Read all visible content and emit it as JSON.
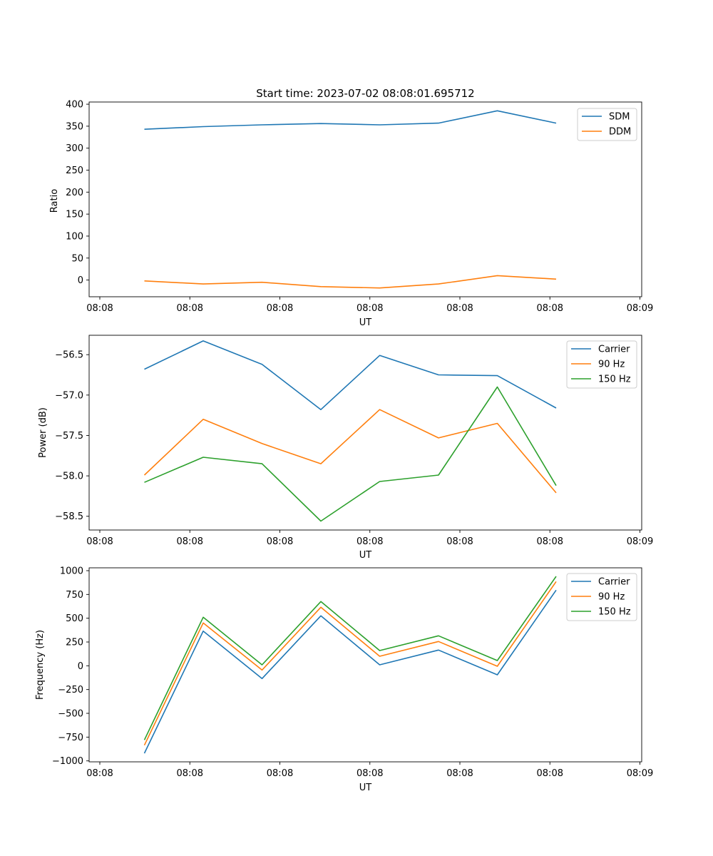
{
  "chart_data": [
    {
      "type": "line",
      "title": "Start time: 2023-07-02 08:08:01.695712",
      "xlabel": "UT",
      "ylabel": "Ratio",
      "x_ticks": [
        "08:08",
        "08:08",
        "08:08",
        "08:08",
        "08:08",
        "08:08",
        "08:09"
      ],
      "x_tick_positions": [
        -0.06,
        0.95,
        1.96,
        2.97,
        3.98,
        4.99,
        6.0
      ],
      "xlim": [
        -0.18,
        6.02
      ],
      "x": [
        0.44,
        1.1,
        1.76,
        2.42,
        3.08,
        3.74,
        4.4,
        5.06
      ],
      "ylim": [
        -38,
        405
      ],
      "y_ticks": [
        0,
        50,
        100,
        150,
        200,
        250,
        300,
        350,
        400
      ],
      "legend_position": "top-right",
      "series": [
        {
          "name": "SDM",
          "color": "#1f77b4",
          "values": [
            343,
            349,
            353,
            356,
            353,
            357,
            385,
            357
          ]
        },
        {
          "name": "DDM",
          "color": "#ff7f0e",
          "values": [
            -2,
            -9,
            -5,
            -15,
            -18,
            -9,
            10,
            2
          ]
        }
      ]
    },
    {
      "type": "line",
      "title": "",
      "xlabel": "UT",
      "ylabel": "Power (dB)",
      "x_ticks": [
        "08:08",
        "08:08",
        "08:08",
        "08:08",
        "08:08",
        "08:08",
        "08:09"
      ],
      "x_tick_positions": [
        -0.06,
        0.95,
        1.96,
        2.97,
        3.98,
        4.99,
        6.0
      ],
      "xlim": [
        -0.18,
        6.02
      ],
      "x": [
        0.44,
        1.1,
        1.76,
        2.42,
        3.08,
        3.74,
        4.4,
        5.06
      ],
      "ylim": [
        -58.67,
        -56.26
      ],
      "y_ticks": [
        -58.5,
        -58.0,
        -57.5,
        -57.0,
        -56.5
      ],
      "y_tick_labels": [
        "−58.5",
        "−58.0",
        "−57.5",
        "−57.0",
        "−56.5"
      ],
      "legend_position": "top-right",
      "series": [
        {
          "name": "Carrier",
          "color": "#1f77b4",
          "values": [
            -56.68,
            -56.33,
            -56.62,
            -57.18,
            -56.51,
            -56.75,
            -56.76,
            -57.16
          ]
        },
        {
          "name": "90 Hz",
          "color": "#ff7f0e",
          "values": [
            -57.99,
            -57.3,
            -57.6,
            -57.85,
            -57.18,
            -57.53,
            -57.35,
            -58.21
          ]
        },
        {
          "name": "150 Hz",
          "color": "#2ca02c",
          "values": [
            -58.08,
            -57.77,
            -57.85,
            -58.56,
            -58.07,
            -57.99,
            -56.9,
            -58.12
          ]
        }
      ]
    },
    {
      "type": "line",
      "title": "",
      "xlabel": "UT",
      "ylabel": "Frequency (Hz)",
      "x_ticks": [
        "08:08",
        "08:08",
        "08:08",
        "08:08",
        "08:08",
        "08:08",
        "08:09"
      ],
      "x_tick_positions": [
        -0.06,
        0.95,
        1.96,
        2.97,
        3.98,
        4.99,
        6.0
      ],
      "xlim": [
        -0.18,
        6.02
      ],
      "x": [
        0.44,
        1.1,
        1.76,
        2.42,
        3.08,
        3.74,
        4.4,
        5.06
      ],
      "ylim": [
        -1010,
        1030
      ],
      "y_ticks": [
        -1000,
        -750,
        -500,
        -250,
        0,
        250,
        500,
        750,
        1000
      ],
      "y_tick_labels": [
        "−1000",
        "−750",
        "−500",
        "−250",
        "0",
        "250",
        "500",
        "750",
        "1000"
      ],
      "legend_position": "top-right",
      "series": [
        {
          "name": "Carrier",
          "color": "#1f77b4",
          "values": [
            -920,
            365,
            -135,
            525,
            10,
            165,
            -95,
            795
          ]
        },
        {
          "name": "90 Hz",
          "color": "#ff7f0e",
          "values": [
            -835,
            450,
            -45,
            615,
            100,
            255,
            -5,
            885
          ]
        },
        {
          "name": "150 Hz",
          "color": "#2ca02c",
          "values": [
            -780,
            510,
            10,
            675,
            160,
            315,
            55,
            940
          ]
        }
      ]
    }
  ]
}
